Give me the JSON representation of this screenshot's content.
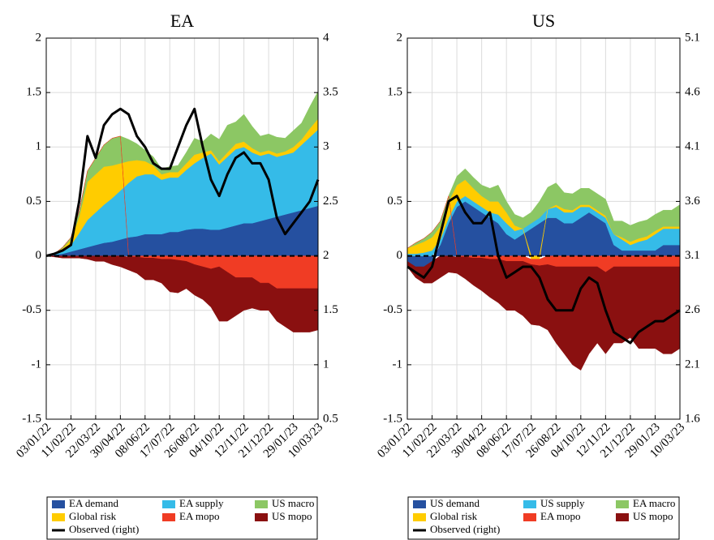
{
  "chart_data": [
    {
      "type": "area",
      "stacked": true,
      "title": "EA",
      "categories": [
        "03/01/22",
        null,
        null,
        "11/02/22",
        null,
        null,
        "22/03/22",
        null,
        null,
        "30/04/22",
        null,
        null,
        "08/06/22",
        null,
        null,
        "17/07/22",
        null,
        null,
        "26/08/22",
        null,
        null,
        "04/10/22",
        null,
        null,
        "12/11/22",
        null,
        null,
        "21/12/22",
        null,
        null,
        "29/01/23",
        null,
        null,
        "10/03/23"
      ],
      "ylim": [
        -1.5,
        2
      ],
      "yticks": [
        -1.5,
        -1,
        -0.5,
        0,
        0.5,
        1,
        1.5,
        2
      ],
      "y2lim": [
        0.5,
        4
      ],
      "y2ticks": [
        0.5,
        1,
        1.5,
        2,
        2.5,
        3,
        3.5,
        4
      ],
      "grid": true,
      "series": [
        {
          "name": "EA demand",
          "color": "#2550a0",
          "values": [
            0,
            0.01,
            0.02,
            0.04,
            0.06,
            0.08,
            0.1,
            0.12,
            0.13,
            0.15,
            0.17,
            0.18,
            0.2,
            0.2,
            0.2,
            0.22,
            0.22,
            0.24,
            0.25,
            0.25,
            0.24,
            0.24,
            0.26,
            0.28,
            0.3,
            0.3,
            0.32,
            0.34,
            0.36,
            0.38,
            0.4,
            0.42,
            0.44,
            0.46
          ]
        },
        {
          "name": "EA supply",
          "color": "#35bbe8",
          "values": [
            0,
            0.01,
            0.03,
            0.06,
            0.15,
            0.25,
            0.3,
            0.35,
            0.4,
            0.45,
            0.5,
            0.55,
            0.55,
            0.55,
            0.5,
            0.5,
            0.5,
            0.55,
            0.6,
            0.65,
            0.7,
            0.6,
            0.65,
            0.7,
            0.7,
            0.65,
            0.6,
            0.6,
            0.55,
            0.55,
            0.55,
            0.6,
            0.65,
            0.7
          ]
        },
        {
          "name": "Global risk",
          "color": "#ffcc00",
          "values": [
            0,
            0,
            0.02,
            0.05,
            0.15,
            0.35,
            0.35,
            0.35,
            0.3,
            0.25,
            0.2,
            0.15,
            0.12,
            0.08,
            0.05,
            0.05,
            0.05,
            0.06,
            0.08,
            0.05,
            0.03,
            0.03,
            0.04,
            0.05,
            0.05,
            0.04,
            0.03,
            0.03,
            0.03,
            0.03,
            0.05,
            0.05,
            0.08,
            0.1
          ]
        },
        {
          "name": "US macro",
          "color": "#8cc764",
          "values": [
            0,
            0,
            0.01,
            0.02,
            0.05,
            0.1,
            0.15,
            0.2,
            0.25,
            0.25,
            0.2,
            0.15,
            0.1,
            0.08,
            0.05,
            0.05,
            0.06,
            0.1,
            0.15,
            0.1,
            0.15,
            0.2,
            0.25,
            0.2,
            0.25,
            0.2,
            0.15,
            0.15,
            0.15,
            0.12,
            0.15,
            0.15,
            0.2,
            0.25
          ]
        },
        {
          "name": "EA mopo",
          "color": "#f03c24",
          "values": [
            0,
            0,
            0,
            0,
            0,
            0,
            0,
            0,
            0,
            0,
            -0.01,
            -0.01,
            -0.02,
            -0.02,
            -0.03,
            -0.03,
            -0.04,
            -0.05,
            -0.08,
            -0.1,
            -0.12,
            -0.1,
            -0.15,
            -0.2,
            -0.2,
            -0.2,
            -0.25,
            -0.25,
            -0.3,
            -0.3,
            -0.3,
            -0.3,
            -0.3,
            -0.3
          ]
        },
        {
          "name": "US mopo",
          "color": "#8a1010",
          "values": [
            0,
            -0.01,
            -0.02,
            -0.02,
            -0.02,
            -0.03,
            -0.05,
            -0.05,
            -0.08,
            -0.1,
            -0.12,
            -0.15,
            -0.2,
            -0.2,
            -0.22,
            -0.3,
            -0.3,
            -0.25,
            -0.28,
            -0.3,
            -0.35,
            -0.5,
            -0.45,
            -0.35,
            -0.3,
            -0.28,
            -0.25,
            -0.25,
            -0.3,
            -0.35,
            -0.4,
            -0.4,
            -0.4,
            -0.38
          ]
        },
        {
          "name": "Observed (right)",
          "color": "#000000",
          "axis": "y2",
          "values": [
            2,
            2.02,
            2.05,
            2.1,
            2.5,
            3.1,
            2.9,
            3.2,
            3.3,
            3.35,
            3.3,
            3.1,
            3.0,
            2.85,
            2.8,
            2.8,
            3.0,
            3.2,
            3.35,
            3.0,
            2.7,
            2.55,
            2.75,
            2.9,
            2.95,
            2.85,
            2.85,
            2.7,
            2.35,
            2.2,
            2.3,
            2.4,
            2.5,
            2.7
          ]
        }
      ]
    },
    {
      "type": "area",
      "stacked": true,
      "title": "US",
      "categories": [
        "03/01/22",
        null,
        null,
        "11/02/22",
        null,
        null,
        "22/03/22",
        null,
        null,
        "30/04/22",
        null,
        null,
        "08/06/22",
        null,
        null,
        "17/07/22",
        null,
        null,
        "26/08/22",
        null,
        null,
        "04/10/22",
        null,
        null,
        "12/11/22",
        null,
        null,
        "21/12/22",
        null,
        null,
        "29/01/23",
        null,
        null,
        "10/03/23"
      ],
      "ylim": [
        -1.5,
        2
      ],
      "yticks": [
        -1.5,
        -1,
        -0.5,
        0,
        0.5,
        1,
        1.5,
        2
      ],
      "y2lim": [
        1.6,
        5.1
      ],
      "y2ticks": [
        1.6,
        2.1,
        2.6,
        3.1,
        3.6,
        4.1,
        4.6,
        5.1
      ],
      "grid": true,
      "series": [
        {
          "name": "US demand",
          "color": "#2550a0",
          "values": [
            -0.05,
            -0.1,
            -0.1,
            -0.05,
            0.1,
            0.3,
            0.45,
            0.5,
            0.45,
            0.4,
            0.35,
            0.3,
            0.2,
            0.15,
            0.2,
            0.25,
            0.3,
            0.35,
            0.35,
            0.3,
            0.3,
            0.35,
            0.4,
            0.35,
            0.3,
            0.1,
            0.05,
            0.05,
            0.05,
            0.05,
            0.05,
            0.1,
            0.1,
            0.1
          ]
        },
        {
          "name": "US supply",
          "color": "#35bbe8",
          "values": [
            0.02,
            0.02,
            0.03,
            0.05,
            0.05,
            0.05,
            0.05,
            0.05,
            0.05,
            0.05,
            0.05,
            0.08,
            0.1,
            0.08,
            0.05,
            0.05,
            0.05,
            0.08,
            0.1,
            0.1,
            0.1,
            0.1,
            0.05,
            0.05,
            0.05,
            0.1,
            0.1,
            0.05,
            0.08,
            0.1,
            0.15,
            0.15,
            0.15,
            0.15
          ]
        },
        {
          "name": "Global risk",
          "color": "#ffcc00",
          "values": [
            0.05,
            0.08,
            0.1,
            0.12,
            0.12,
            0.15,
            0.15,
            0.15,
            0.12,
            0.1,
            0.1,
            0.12,
            0.1,
            0.05,
            0,
            -0.03,
            -0.03,
            0,
            0.02,
            0.03,
            0.02,
            0.02,
            0.02,
            0.02,
            0.02,
            0,
            0.02,
            0.03,
            0.03,
            0.03,
            0.03,
            0.02,
            0.02,
            0.02
          ]
        },
        {
          "name": "EA macro",
          "color": "#8cc764",
          "values": [
            0,
            0.02,
            0.03,
            0.05,
            0.05,
            0.05,
            0.08,
            0.1,
            0.1,
            0.1,
            0.12,
            0.15,
            0.1,
            0.1,
            0.1,
            0.1,
            0.15,
            0.2,
            0.2,
            0.15,
            0.15,
            0.15,
            0.15,
            0.15,
            0.15,
            0.12,
            0.15,
            0.15,
            0.15,
            0.15,
            0.15,
            0.15,
            0.15,
            0.2
          ]
        },
        {
          "name": "EA mopo",
          "color": "#f03c24",
          "values": [
            0,
            0,
            0,
            0,
            0,
            0,
            -0.01,
            -0.01,
            -0.02,
            -0.02,
            -0.03,
            -0.03,
            -0.05,
            -0.05,
            -0.05,
            -0.05,
            -0.06,
            -0.08,
            -0.1,
            -0.1,
            -0.1,
            -0.1,
            -0.1,
            -0.1,
            -0.15,
            -0.1,
            -0.1,
            -0.1,
            -0.1,
            -0.1,
            -0.1,
            -0.1,
            -0.1,
            -0.1
          ]
        },
        {
          "name": "US mopo",
          "color": "#8a1010",
          "values": [
            -0.05,
            -0.1,
            -0.15,
            -0.2,
            -0.2,
            -0.15,
            -0.15,
            -0.2,
            -0.25,
            -0.3,
            -0.35,
            -0.4,
            -0.45,
            -0.45,
            -0.5,
            -0.55,
            -0.55,
            -0.6,
            -0.7,
            -0.8,
            -0.9,
            -0.95,
            -0.8,
            -0.7,
            -0.75,
            -0.7,
            -0.7,
            -0.65,
            -0.75,
            -0.75,
            -0.75,
            -0.8,
            -0.8,
            -0.75
          ]
        },
        {
          "name": "Observed (right)",
          "color": "#000000",
          "axis": "y2",
          "values": [
            3.0,
            2.95,
            2.9,
            3.0,
            3.3,
            3.6,
            3.65,
            3.5,
            3.4,
            3.4,
            3.5,
            3.1,
            2.9,
            2.95,
            3.0,
            3.0,
            2.9,
            2.7,
            2.6,
            2.6,
            2.6,
            2.8,
            2.9,
            2.85,
            2.6,
            2.4,
            2.35,
            2.3,
            2.4,
            2.45,
            2.5,
            2.5,
            2.55,
            2.6
          ]
        }
      ]
    }
  ]
}
